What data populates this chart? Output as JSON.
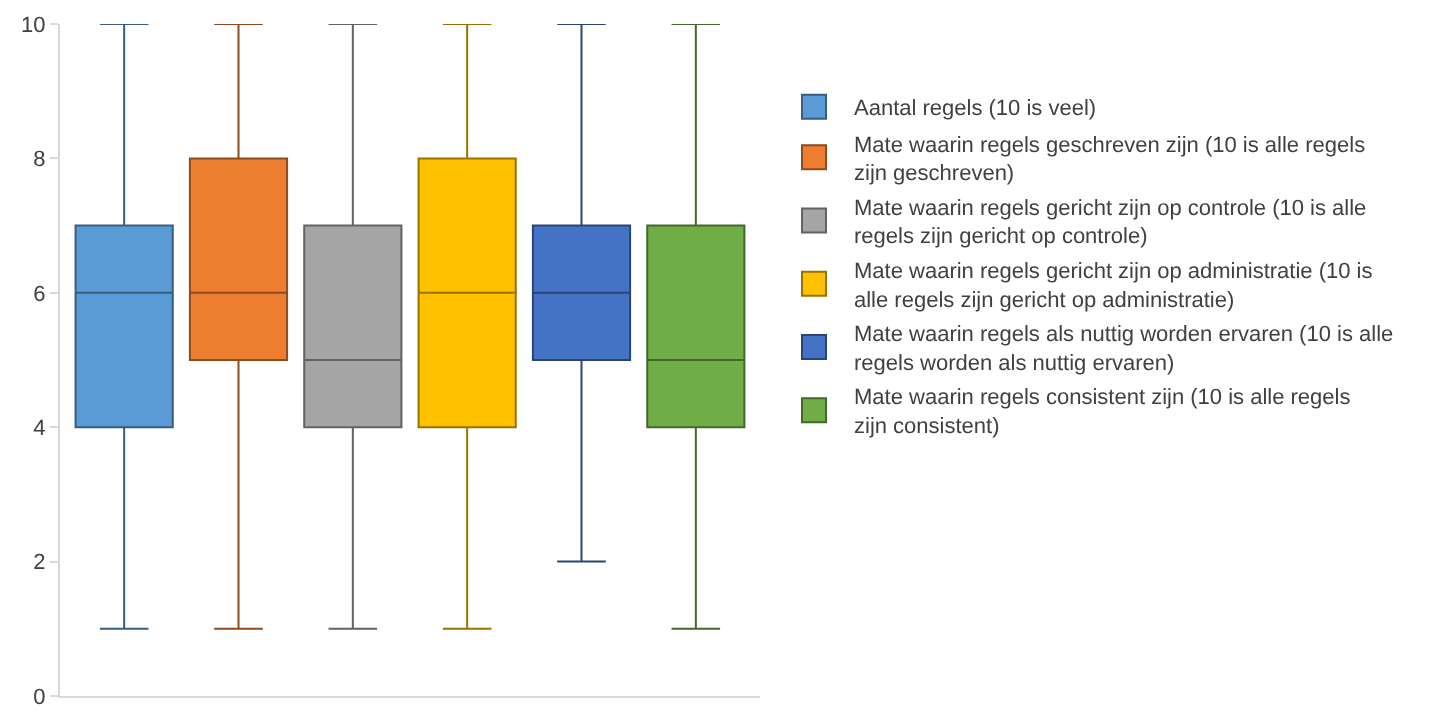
{
  "chart_data": {
    "type": "box",
    "categories": [
      null
    ],
    "series": [
      {
        "name": "Aantal regels (10 is veel)",
        "color": "#5b9bd5",
        "boxes": [
          {
            "low": 1,
            "q1": 4,
            "median": 6,
            "q3": 7,
            "high": 10
          }
        ]
      },
      {
        "name": "Mate waarin regels geschreven zijn (10 is alle regels zijn geschreven)",
        "color": "#ed7d31",
        "boxes": [
          {
            "low": 1,
            "q1": 5,
            "median": 6,
            "q3": 8,
            "high": 10
          }
        ]
      },
      {
        "name": "Mate waarin regels gericht zijn op controle (10 is alle regels zijn gericht op controle)",
        "color": "#a5a5a5",
        "boxes": [
          {
            "low": 1,
            "q1": 4,
            "median": 5,
            "q3": 7,
            "high": 10
          }
        ]
      },
      {
        "name": "Mate waarin regels gericht zijn op administratie (10 is alle regels zijn gericht op administratie)",
        "color": "#ffc000",
        "boxes": [
          {
            "low": 1,
            "q1": 4,
            "median": 6,
            "q3": 8,
            "high": 10
          }
        ]
      },
      {
        "name": "Mate waarin regels als nuttig worden ervaren (10 is alle regels worden als nuttig ervaren)",
        "color": "#4472c4",
        "boxes": [
          {
            "low": 2,
            "q1": 5,
            "median": 6,
            "q3": 7,
            "high": 10
          }
        ]
      },
      {
        "name": "Mate waarin regels consistent zijn (10 is alle regels zijn consistent)",
        "color": "#70ad47",
        "boxes": [
          {
            "low": 1,
            "q1": 4,
            "median": 5,
            "q3": 7,
            "high": 10
          }
        ]
      }
    ],
    "ylim": [
      0,
      10
    ],
    "yticks": [
      0,
      2,
      4,
      6,
      8,
      10
    ],
    "grid": false,
    "legend": "right",
    "tick_labels": "y"
  }
}
